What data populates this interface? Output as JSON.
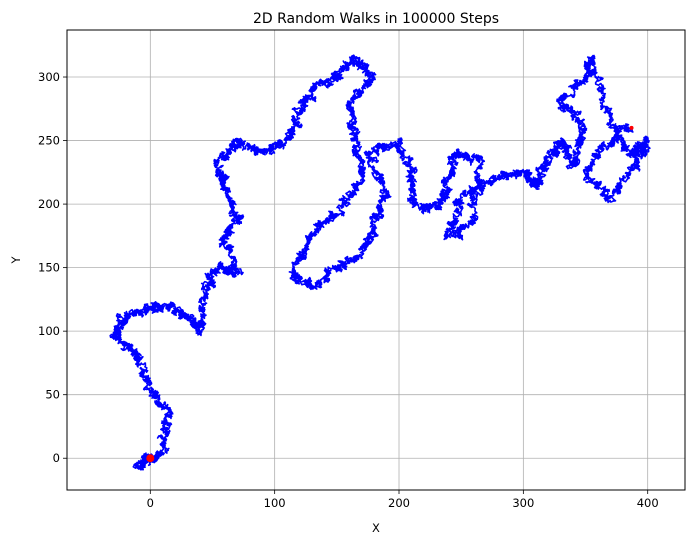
{
  "chart_data": {
    "type": "line",
    "title": "2D Random Walks in 100000 Steps",
    "xlabel": "X",
    "ylabel": "Y",
    "xlim": [
      -67,
      430
    ],
    "ylim": [
      -25,
      337
    ],
    "xticks": [
      0,
      100,
      200,
      300,
      400
    ],
    "yticks": [
      0,
      50,
      100,
      150,
      200,
      250,
      300
    ],
    "grid": true,
    "steps": 100000,
    "series": [
      {
        "color": "#0000ff",
        "waypoints": [
          [
            0,
            0
          ],
          [
            -10,
            -5
          ],
          [
            10,
            5
          ],
          [
            14,
            35
          ],
          [
            0,
            55
          ],
          [
            -10,
            80
          ],
          [
            -30,
            95
          ],
          [
            -20,
            110
          ],
          [
            0,
            118
          ],
          [
            15,
            120
          ],
          [
            30,
            112
          ],
          [
            40,
            100
          ],
          [
            45,
            135
          ],
          [
            55,
            150
          ],
          [
            70,
            145
          ],
          [
            60,
            175
          ],
          [
            70,
            190
          ],
          [
            60,
            210
          ],
          [
            55,
            230
          ],
          [
            70,
            250
          ],
          [
            90,
            240
          ],
          [
            110,
            250
          ],
          [
            120,
            270
          ],
          [
            130,
            290
          ],
          [
            150,
            300
          ],
          [
            165,
            315
          ],
          [
            180,
            300
          ],
          [
            160,
            280
          ],
          [
            165,
            250
          ],
          [
            170,
            220
          ],
          [
            150,
            195
          ],
          [
            130,
            175
          ],
          [
            115,
            145
          ],
          [
            130,
            135
          ],
          [
            150,
            150
          ],
          [
            170,
            160
          ],
          [
            180,
            185
          ],
          [
            190,
            210
          ],
          [
            175,
            240
          ],
          [
            200,
            250
          ],
          [
            210,
            225
          ],
          [
            210,
            200
          ],
          [
            230,
            195
          ],
          [
            240,
            215
          ],
          [
            245,
            240
          ],
          [
            265,
            235
          ],
          [
            260,
            185
          ],
          [
            240,
            175
          ],
          [
            250,
            205
          ],
          [
            275,
            220
          ],
          [
            300,
            225
          ],
          [
            310,
            215
          ],
          [
            320,
            235
          ],
          [
            330,
            250
          ],
          [
            340,
            230
          ],
          [
            350,
            260
          ],
          [
            330,
            280
          ],
          [
            350,
            300
          ],
          [
            355,
            315
          ],
          [
            370,
            265
          ],
          [
            385,
            240
          ],
          [
            400,
            250
          ],
          [
            390,
            230
          ],
          [
            370,
            205
          ],
          [
            350,
            225
          ],
          [
            365,
            245
          ],
          [
            387,
            260
          ]
        ]
      }
    ],
    "markers": [
      {
        "x": 0,
        "y": 0,
        "color": "#ff0000",
        "size": 6
      },
      {
        "x": 387,
        "y": 260,
        "color": "#ff0000",
        "size": 3
      }
    ]
  }
}
